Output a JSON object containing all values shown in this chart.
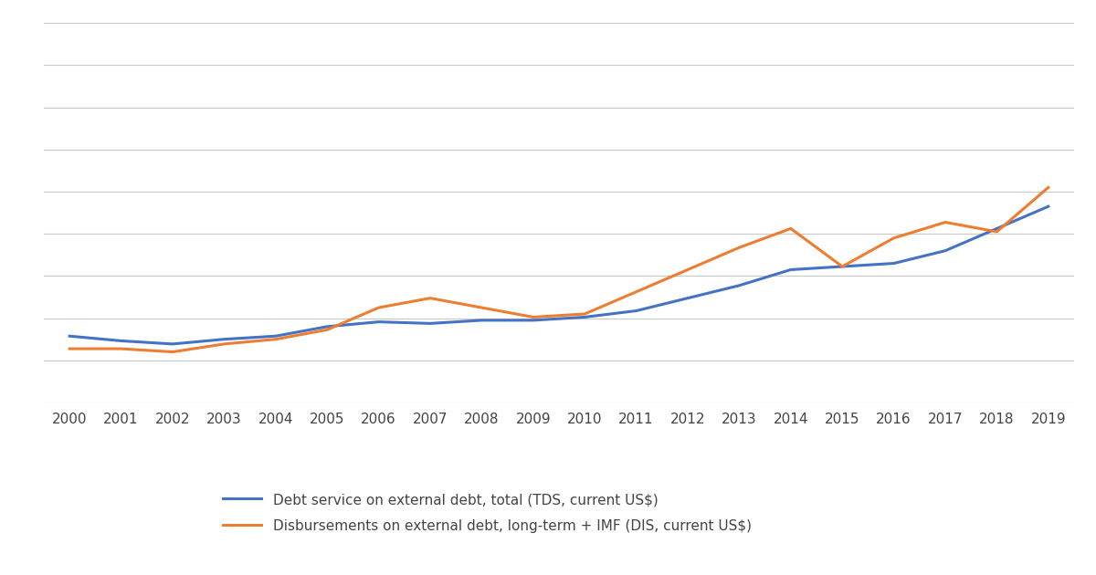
{
  "years": [
    2000,
    2001,
    2002,
    2003,
    2004,
    2005,
    2006,
    2007,
    2008,
    2009,
    2010,
    2011,
    2012,
    2013,
    2014,
    2015,
    2016,
    2017,
    2018,
    2019
  ],
  "debt_service": [
    21,
    19.5,
    18.5,
    20,
    21,
    24,
    25.5,
    25,
    26,
    26,
    27,
    29,
    33,
    37,
    42,
    43,
    44,
    48,
    55,
    62
  ],
  "disbursements": [
    17,
    17,
    16,
    18.5,
    20,
    23,
    30,
    33,
    30,
    27,
    28,
    35,
    42,
    49,
    55,
    43,
    52,
    57,
    54,
    68
  ],
  "debt_service_color": "#4472C4",
  "disbursements_color": "#ED7D31",
  "legend_label_1": "Debt service on external debt, total (TDS, current US$)",
  "legend_label_2": "Disbursements on external debt, long-term + IMF (DIS, current US$)",
  "background_color": "#ffffff",
  "grid_color": "#c8c8c8",
  "line_width": 2.2,
  "ylim": [
    0,
    120
  ],
  "xlim_min": 1999.5,
  "xlim_max": 2019.5,
  "n_gridlines": 9
}
